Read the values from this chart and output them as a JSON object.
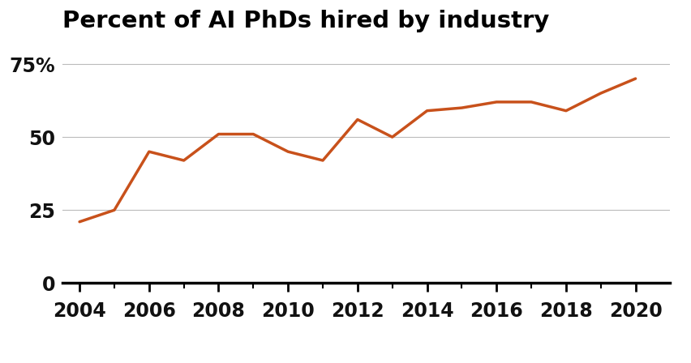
{
  "title": "Percent of AI PhDs hired by industry",
  "x": [
    2004,
    2005,
    2006,
    2007,
    2008,
    2009,
    2010,
    2011,
    2012,
    2013,
    2014,
    2015,
    2016,
    2017,
    2018,
    2019,
    2020
  ],
  "y": [
    21,
    25,
    45,
    42,
    51,
    51,
    45,
    42,
    56,
    50,
    59,
    60,
    62,
    62,
    59,
    65,
    70
  ],
  "line_color": "#C8511B",
  "line_width": 2.5,
  "yticks": [
    0,
    25,
    50,
    75
  ],
  "ytick_labels": [
    "0",
    "25",
    "50",
    "75%"
  ],
  "xticks": [
    2004,
    2006,
    2008,
    2010,
    2012,
    2014,
    2016,
    2018,
    2020
  ],
  "x_minor_ticks": [
    2004,
    2005,
    2006,
    2007,
    2008,
    2009,
    2010,
    2011,
    2012,
    2013,
    2014,
    2015,
    2016,
    2017,
    2018,
    2019,
    2020
  ],
  "ylim": [
    0,
    82
  ],
  "xlim": [
    2003.5,
    2021
  ],
  "background_color": "#ffffff",
  "grid_color": "#bbbbbb",
  "title_fontsize": 21,
  "tick_fontsize": 17,
  "axis_color": "#000000"
}
